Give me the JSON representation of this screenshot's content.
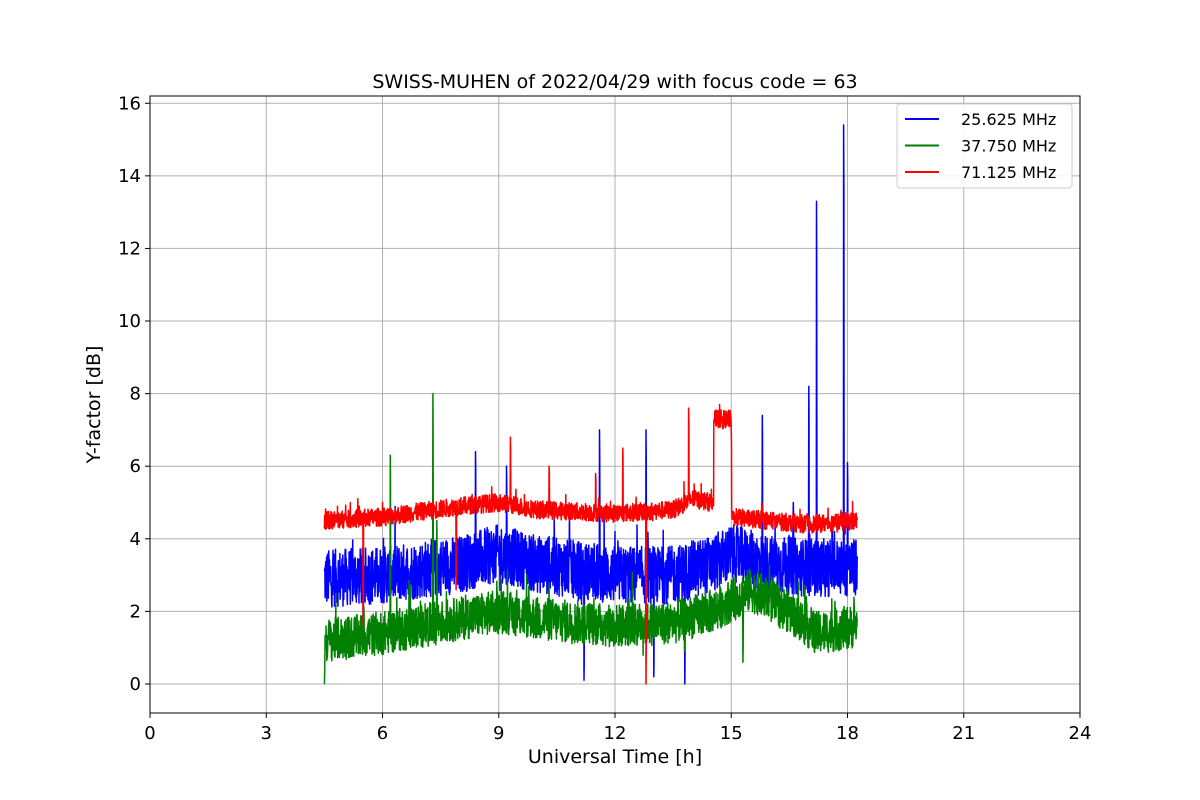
{
  "chart_data": {
    "type": "line",
    "title": "SWISS-MUHEN of 2022/04/29 with focus code = 63",
    "xlabel": "Universal Time [h]",
    "ylabel": "Y-factor [dB]",
    "xlim": [
      0,
      24
    ],
    "ylim": [
      -0.8,
      16.2
    ],
    "xticks": [
      0,
      3,
      6,
      9,
      12,
      15,
      18,
      21,
      24
    ],
    "yticks": [
      0,
      2,
      4,
      6,
      8,
      10,
      12,
      14,
      16
    ],
    "grid": true,
    "legend_position": "top-right",
    "series": [
      {
        "name": "25.625 MHz",
        "color": "#0000ff",
        "x_range": [
          4.5,
          18.25
        ],
        "baseline": [
          [
            4.5,
            2.9
          ],
          [
            6,
            3.0
          ],
          [
            8,
            3.3
          ],
          [
            9,
            3.6
          ],
          [
            10,
            3.3
          ],
          [
            12,
            3.0
          ],
          [
            13.5,
            3.0
          ],
          [
            14.5,
            3.3
          ],
          [
            15,
            3.6
          ],
          [
            16,
            3.3
          ],
          [
            17,
            3.2
          ],
          [
            18.25,
            3.2
          ]
        ],
        "spread": 0.8,
        "spikes": [
          [
            5.5,
            1.6
          ],
          [
            8.4,
            6.4
          ],
          [
            9.2,
            6.0
          ],
          [
            11.2,
            0.1
          ],
          [
            11.6,
            7.0
          ],
          [
            12.8,
            7.0
          ],
          [
            13.0,
            0.2
          ],
          [
            13.8,
            0.0
          ],
          [
            15.8,
            7.4
          ],
          [
            16.6,
            5.0
          ],
          [
            17.0,
            8.2
          ],
          [
            17.2,
            13.3
          ],
          [
            17.6,
            4.6
          ],
          [
            17.9,
            15.4
          ],
          [
            18.0,
            6.1
          ]
        ]
      },
      {
        "name": "37.750 MHz",
        "color": "#008000",
        "x_range": [
          4.5,
          18.25
        ],
        "baseline": [
          [
            4.5,
            1.2
          ],
          [
            6,
            1.4
          ],
          [
            8,
            1.8
          ],
          [
            9,
            2.0
          ],
          [
            10,
            1.8
          ],
          [
            12,
            1.6
          ],
          [
            13.5,
            1.7
          ],
          [
            14.5,
            2.0
          ],
          [
            15.5,
            2.6
          ],
          [
            16.5,
            2.0
          ],
          [
            17.2,
            1.4
          ],
          [
            18.25,
            1.6
          ]
        ],
        "spread": 0.6,
        "spikes": [
          [
            4.5,
            0.0
          ],
          [
            6.2,
            6.3
          ],
          [
            7.3,
            8.0
          ],
          [
            7.4,
            4.5
          ],
          [
            15.3,
            0.6
          ]
        ]
      },
      {
        "name": "71.125 MHz",
        "color": "#ff0000",
        "x_range": [
          4.5,
          18.25
        ],
        "baseline": [
          [
            4.5,
            4.5
          ],
          [
            6,
            4.6
          ],
          [
            8,
            4.9
          ],
          [
            9,
            5.0
          ],
          [
            10,
            4.8
          ],
          [
            12,
            4.7
          ],
          [
            13.5,
            4.8
          ],
          [
            14,
            5.1
          ],
          [
            14.5,
            5.0
          ],
          [
            15.0,
            4.6
          ],
          [
            16,
            4.5
          ],
          [
            17,
            4.4
          ],
          [
            18.25,
            4.5
          ]
        ],
        "spread": 0.25,
        "spikes": [
          [
            5.5,
            1.6
          ],
          [
            7.9,
            2.6
          ],
          [
            9.3,
            6.8
          ],
          [
            10.3,
            6.0
          ],
          [
            11.5,
            5.8
          ],
          [
            12.2,
            6.5
          ],
          [
            12.8,
            0.0
          ],
          [
            13.9,
            7.6
          ],
          [
            14.7,
            7.7
          ],
          [
            15.0,
            6.9
          ]
        ],
        "plateau": [
          14.55,
          15.0,
          7.3
        ]
      }
    ]
  }
}
